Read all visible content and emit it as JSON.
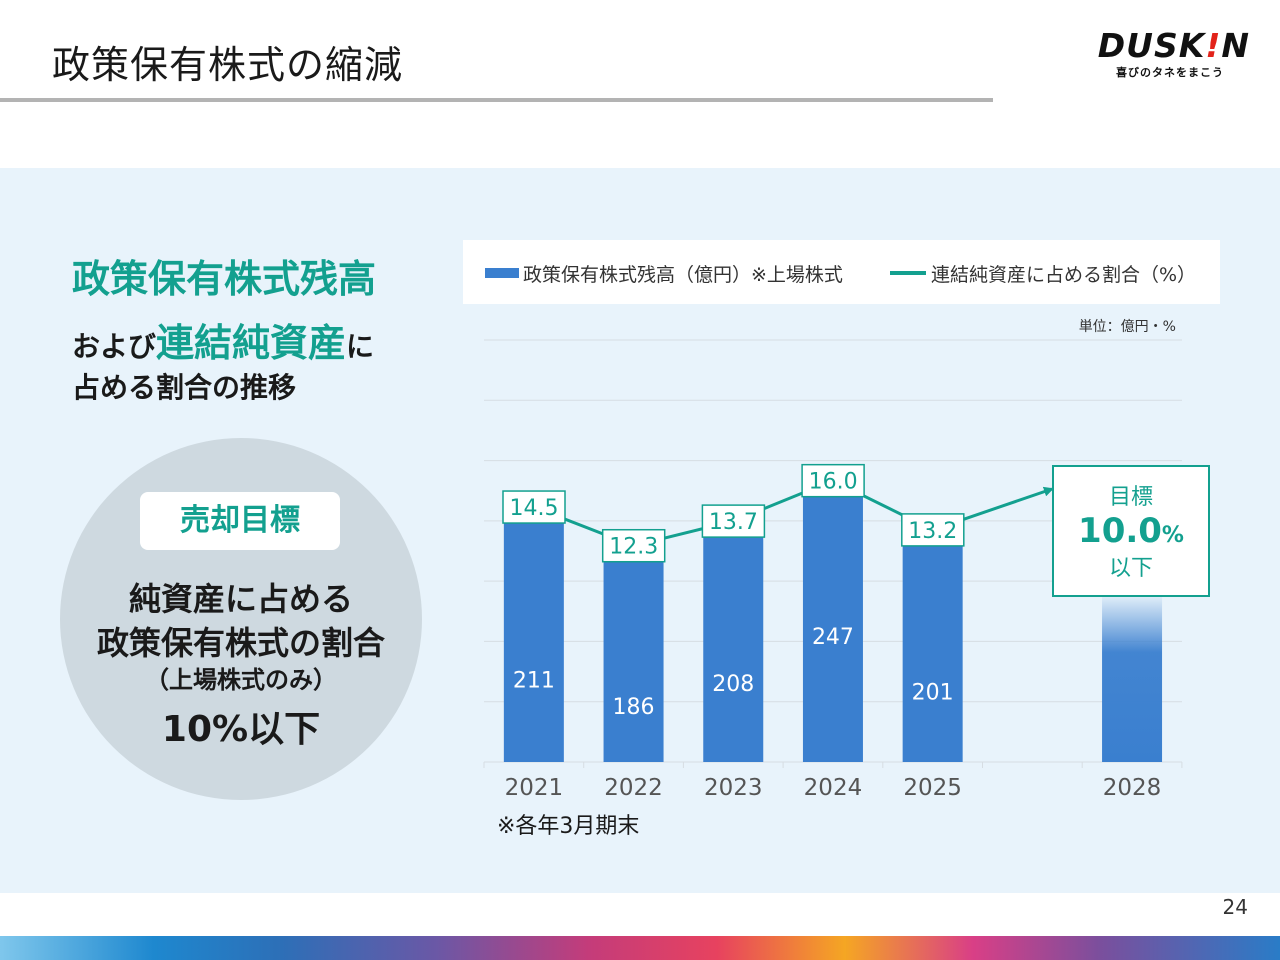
{
  "page": {
    "title": "政策保有株式の縮減",
    "logo_word_a": "DUSK",
    "logo_word_b": "!",
    "logo_word_c": "N",
    "logo_tagline": "喜びのタネをまこう",
    "page_number": "24"
  },
  "left": {
    "heading_line1": "政策保有株式残高",
    "heading_line2_pre": "および",
    "heading_line2_accent": "連結純資産",
    "heading_line2_post": "に",
    "heading_line3": "占める割合の推移",
    "badge": "売却目標",
    "circle_line1": "純資産に占める",
    "circle_line2": "政策保有株式の割合",
    "circle_line3": "（上場株式のみ）",
    "circle_line4": "10%以下"
  },
  "legend": {
    "bar_label": "政策保有株式残高（億円）※上場株式",
    "line_label": "連結純資産に占める割合（%）"
  },
  "unit_note": "単位：億円・%",
  "footnote": "※各年3月期末",
  "target": {
    "label": "目標",
    "value": "10.0",
    "unit": "%",
    "suffix": "以下"
  },
  "colors": {
    "bar": "#3a7fcf",
    "line": "#13a08f",
    "grid": "#d6dde3"
  },
  "chart_data": {
    "type": "bar",
    "categories": [
      "2021",
      "2022",
      "2023",
      "2024",
      "2025",
      "",
      "2028"
    ],
    "series": [
      {
        "name": "政策保有株式残高（億円）※上場株式",
        "type": "bar",
        "values": [
          211,
          186,
          208,
          247,
          201,
          null,
          null
        ],
        "labels": [
          "211",
          "186",
          "208",
          "247",
          "201",
          null,
          null
        ]
      },
      {
        "name": "連結純資産に占める割合（%）",
        "type": "line",
        "values": [
          14.5,
          12.3,
          13.7,
          16.0,
          13.2,
          null,
          10.0
        ],
        "labels": [
          "14.5",
          "12.3",
          "13.7",
          "16.0",
          "13.2",
          null,
          null
        ]
      }
    ],
    "target_bar_category": "2028",
    "ylim_bar": [
      0,
      350
    ],
    "ylim_line": [
      0,
      24
    ],
    "grid": true,
    "legend_position": "top"
  }
}
